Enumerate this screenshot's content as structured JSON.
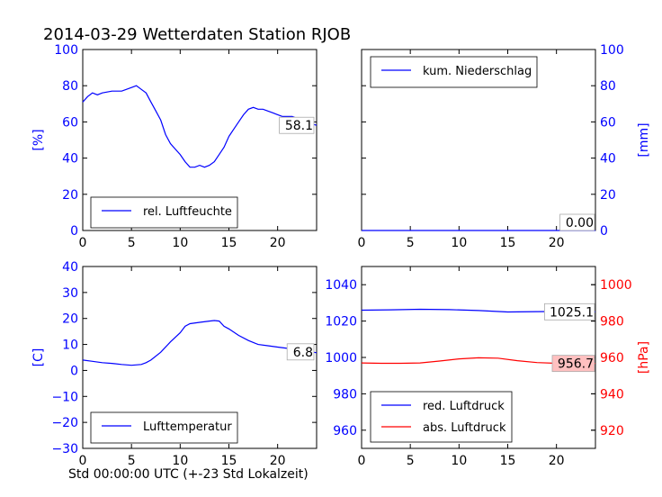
{
  "title": "2014-03-29 Wetterdaten Station RJOB",
  "xlabel_common": "Std 00:00:00 UTC (+-23 Std Lokalzeit)",
  "colors": {
    "blue": "#0000ff",
    "red": "#ff0000",
    "axis": "#000000",
    "label_bg_red": "#ffc0c0"
  },
  "chart_data": [
    {
      "id": "humidity",
      "type": "line",
      "title": "",
      "xlabel": "",
      "ylabel": "[%]",
      "xlim": [
        0,
        24
      ],
      "ylim": [
        0,
        100
      ],
      "xticks": [
        "0",
        "5",
        "10",
        "15",
        "20"
      ],
      "yticks": [
        "0",
        "20",
        "40",
        "60",
        "80",
        "100"
      ],
      "legend": {
        "placement": "lower-center",
        "entries": [
          "rel. Luftfeuchte"
        ]
      },
      "annotation": "58.1",
      "series": [
        {
          "name": "rel. Luftfeuchte",
          "color": "#0000ff",
          "x": [
            0,
            0.5,
            1,
            1.5,
            2,
            3,
            4,
            5,
            5.5,
            6,
            6.5,
            7,
            7.5,
            8,
            8.5,
            9,
            9.5,
            10,
            10.5,
            11,
            11.5,
            12,
            12.5,
            13,
            13.5,
            14,
            14.5,
            15,
            15.5,
            16,
            16.5,
            17,
            17.5,
            18,
            18.5,
            19,
            19.5,
            20,
            20.5,
            21,
            21.5,
            22,
            22.5,
            23,
            23.5,
            24
          ],
          "y": [
            71,
            74,
            76,
            75,
            76,
            77,
            77,
            79,
            80,
            78,
            76,
            71,
            66,
            61,
            53,
            48,
            45,
            42,
            38,
            35,
            35,
            36,
            35,
            36,
            38,
            42,
            46,
            52,
            56,
            60,
            64,
            67,
            68,
            67,
            67,
            66,
            65,
            64,
            63,
            63,
            63,
            62,
            61,
            60,
            59,
            58.1
          ]
        }
      ]
    },
    {
      "id": "precip",
      "type": "line",
      "title": "",
      "xlabel": "",
      "ylabel": "[mm]",
      "xlim": [
        0,
        24
      ],
      "ylim": [
        0,
        100
      ],
      "xticks": [
        "0",
        "5",
        "10",
        "15",
        "20"
      ],
      "yticks": [
        "0",
        "20",
        "40",
        "60",
        "80",
        "100"
      ],
      "yaxis_side": "right",
      "legend": {
        "placement": "top-left",
        "entries": [
          "kum. Niederschlag"
        ]
      },
      "annotation": "0.00",
      "series": [
        {
          "name": "kum. Niederschlag",
          "color": "#0000ff",
          "x": [
            0,
            24
          ],
          "y": [
            0,
            0
          ]
        }
      ]
    },
    {
      "id": "temperature",
      "type": "line",
      "title": "",
      "xlabel": "",
      "ylabel": "[C]",
      "xlim": [
        0,
        24
      ],
      "ylim": [
        -30,
        40
      ],
      "xticks": [
        "0",
        "5",
        "10",
        "15",
        "20"
      ],
      "yticks": [
        "−30",
        "−20",
        "−10",
        "0",
        "10",
        "20",
        "30",
        "40"
      ],
      "legend": {
        "placement": "lower-center",
        "entries": [
          "Lufttemperatur"
        ]
      },
      "annotation": "6.8",
      "series": [
        {
          "name": "Lufttemperatur",
          "color": "#0000ff",
          "x": [
            0,
            1,
            2,
            3,
            4,
            5,
            6,
            6.5,
            7,
            8,
            9,
            10,
            10.5,
            11,
            12,
            13,
            13.5,
            14,
            14.5,
            15,
            16,
            17,
            18,
            19,
            20,
            21,
            22,
            23,
            24
          ],
          "y": [
            4,
            3.5,
            3,
            2.7,
            2.3,
            2,
            2.3,
            3,
            4,
            7,
            11,
            14.5,
            17,
            18,
            18.5,
            19,
            19.2,
            19,
            17,
            16,
            13.5,
            11.5,
            10,
            9.5,
            9,
            8.5,
            8,
            7.5,
            6.8
          ]
        }
      ]
    },
    {
      "id": "pressure",
      "type": "line",
      "title": "",
      "xlabel": "",
      "ylabel": "[hPa]",
      "xlim": [
        0,
        24
      ],
      "ylim": [
        950,
        1050
      ],
      "xticks": [
        "0",
        "5",
        "10",
        "15",
        "20"
      ],
      "yticks": [
        "960",
        "980",
        "1000",
        "1020",
        "1040"
      ],
      "y2lim": [
        910,
        1010
      ],
      "y2ticks": [
        "920",
        "940",
        "960",
        "980",
        "1000"
      ],
      "legend": {
        "placement": "lower-left",
        "entries": [
          "red. Luftdruck",
          "abs. Luftdruck"
        ]
      },
      "annotations": [
        "1025.1",
        "956.7"
      ],
      "series": [
        {
          "name": "red. Luftdruck",
          "color": "#0000ff",
          "axis": "left",
          "x": [
            0,
            3,
            6,
            9,
            12,
            15,
            18,
            21,
            24
          ],
          "y": [
            1026,
            1026.2,
            1026.5,
            1026.3,
            1025.8,
            1025,
            1025.2,
            1025.3,
            1025.1
          ]
        },
        {
          "name": "abs. Luftdruck",
          "color": "#ff0000",
          "axis": "right",
          "x": [
            0,
            2,
            4,
            6,
            8,
            10,
            12,
            14,
            16,
            18,
            20,
            22,
            24
          ],
          "y": [
            957,
            956.8,
            956.8,
            957,
            958,
            959.2,
            959.8,
            959.6,
            958.2,
            957.2,
            956.8,
            956.7,
            956.7
          ]
        }
      ]
    }
  ]
}
